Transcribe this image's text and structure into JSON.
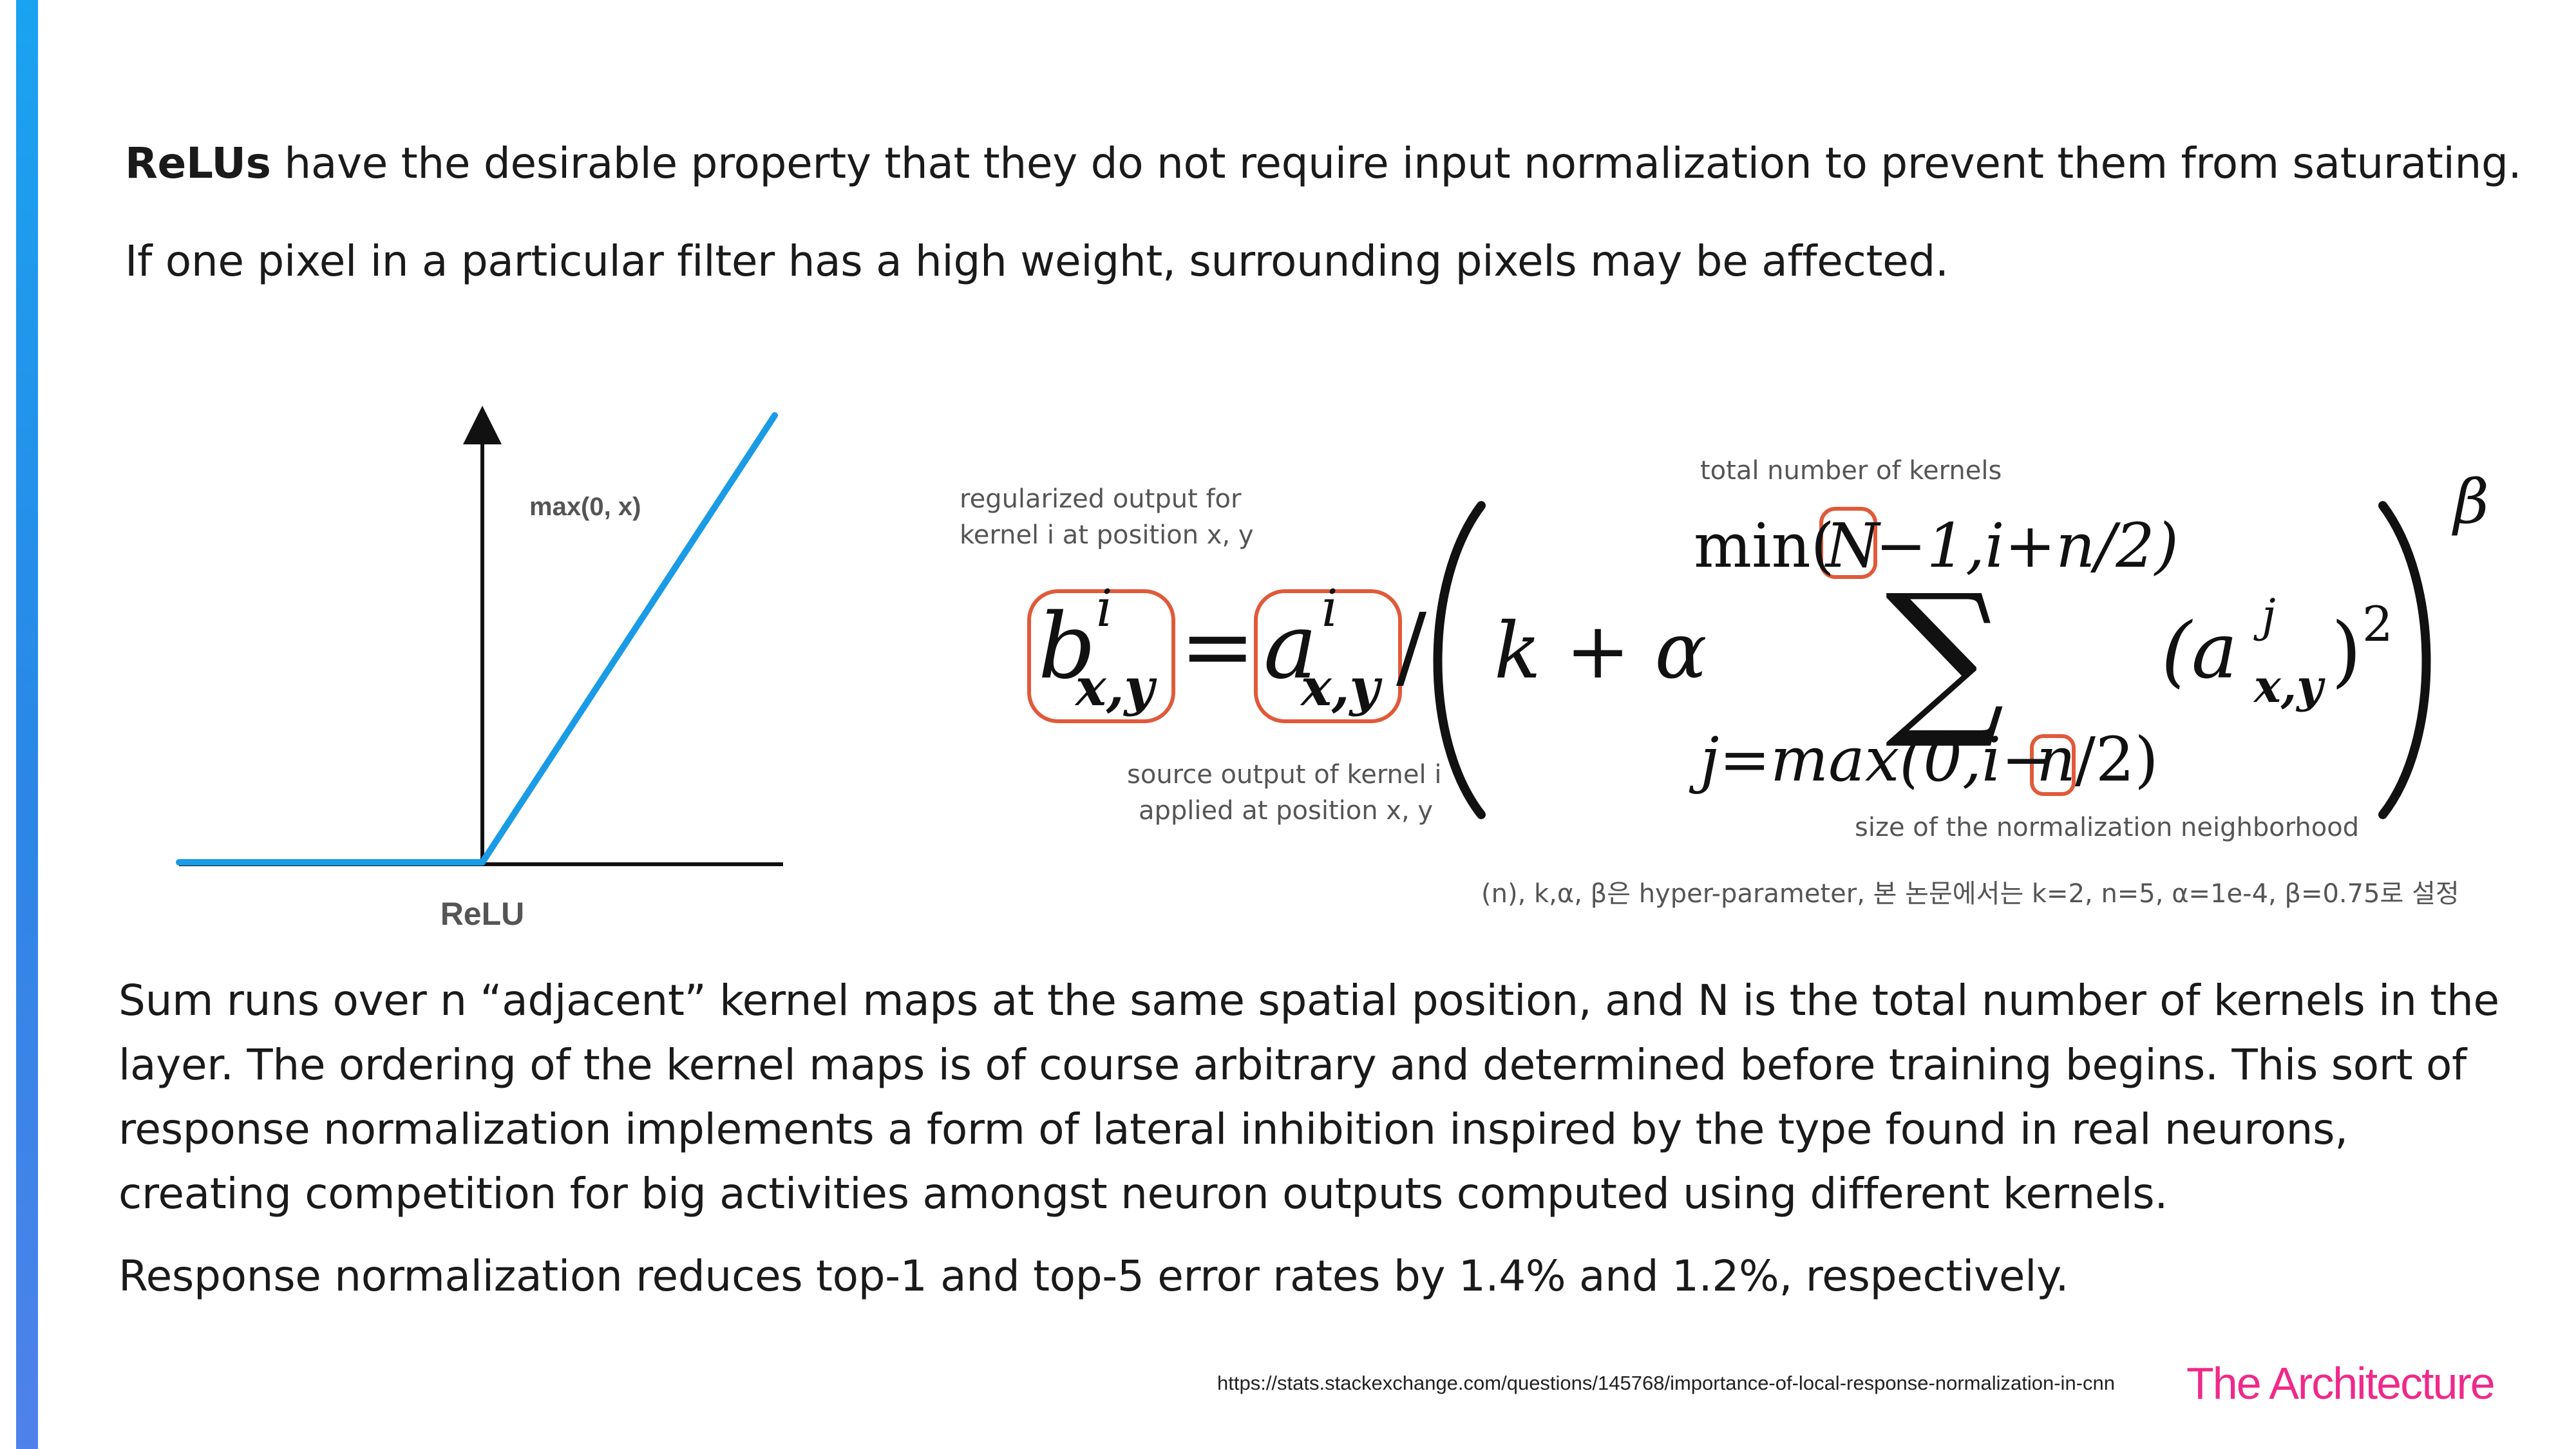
{
  "intro": {
    "line1_bold": "ReLUs",
    "line1_rest": " have the desirable property that they do not require input normalization to prevent them from saturating.",
    "line2": "If one pixel in a particular filter has a high weight, surrounding pixels may be affected."
  },
  "relu_chart": {
    "curve_label": "max(0, x)",
    "title": "ReLU",
    "line_color": "#1a9be6"
  },
  "formula": {
    "lhs_base": "b",
    "lhs_sup": "i",
    "lhs_sub": "x,y",
    "equals": "=",
    "rhs_base": "a",
    "rhs_sup": "i",
    "rhs_sub": "x,y",
    "slash": "/",
    "k_plus_alpha": "k + α",
    "upper_prefix": "min(",
    "upper_N": "N",
    "upper_suffix": "−1,i+n/2)",
    "sigma": "∑",
    "lower_prefix": "j=max(0,i−",
    "lower_n": "n",
    "lower_suffix": "/2)",
    "term_base": "(a",
    "term_sup": "j",
    "term_sub": "x,y",
    "term_close": ")",
    "term_power": "2",
    "beta": "β",
    "highlight_color": "#e05a3a"
  },
  "annotations": {
    "regularized_line1": "regularized output for",
    "regularized_line2": "kernel i at position x, y",
    "total_kernels": "total number of kernels",
    "source_line1": "source output of kernel i",
    "source_line2": "applied at position x, y",
    "neighborhood": "size of the normalization neighborhood",
    "hyperparams": "(n), k,α, β은 hyper-parameter, 본 논문에서는 k=2, n=5, α=1e-4, β=0.75로 설정"
  },
  "body": {
    "p1_lines": [
      "Sum runs over n “adjacent” kernel maps at the same spatial position, and N is the total number of kernels in the",
      "layer. The ordering of the kernel maps is of course arbitrary and determined before training begins. This sort of",
      "response normalization implements a form of lateral inhibition inspired by the type found in real neurons,",
      "creating competition for big activities amongst neuron outputs computed using different kernels."
    ],
    "p2": "Response normalization reduces top-1 and top-5 error rates by 1.4% and 1.2%, respectively."
  },
  "footer": {
    "url": "https://stats.stackexchange.com/questions/145768/importance-of-local-response-normalization-in-cnn",
    "brand": "The Architecture",
    "brand_color": "#ee2a8a"
  }
}
